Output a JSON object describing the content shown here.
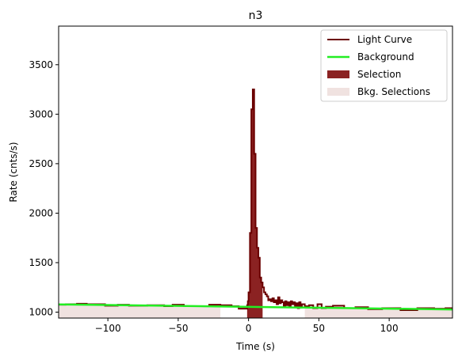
{
  "chart_data": {
    "type": "line",
    "title": "n3",
    "xlabel": "Time (s)",
    "ylabel": "Rate (cnts/s)",
    "xlim": [
      -135,
      145
    ],
    "ylim": [
      940,
      3890
    ],
    "xticks": [
      -100,
      -50,
      0,
      50,
      100
    ],
    "yticks": [
      1000,
      1500,
      2000,
      2500,
      3000,
      3500
    ],
    "xtick_labels": [
      "−100",
      "−50",
      "0",
      "50",
      "100"
    ],
    "ytick_labels": [
      "1000",
      "1500",
      "2000",
      "2500",
      "3000",
      "3500"
    ],
    "grid": false,
    "legend_position": "top-right",
    "colors": {
      "light_curve": "#6b0000",
      "background": "#22ee22",
      "selection": "#8b2222",
      "bkg_selection": "#f0e2e0"
    },
    "series": [
      {
        "name": "Light Curve",
        "kind": "step",
        "x": [
          -135,
          -130,
          -122,
          -115,
          -102,
          -93,
          -85,
          -72,
          -60,
          -54,
          -46,
          -37,
          -28,
          -20,
          -12,
          -7,
          -1,
          -0.5,
          0,
          1,
          2,
          3,
          4,
          5,
          6,
          7,
          8,
          9,
          10,
          11,
          12,
          13,
          14,
          15,
          16,
          17,
          18,
          19,
          20,
          21,
          22,
          23,
          24,
          25,
          26,
          27,
          28,
          29,
          30,
          31,
          32,
          33,
          34,
          35,
          36,
          37,
          38,
          40,
          43,
          46,
          49,
          52,
          55,
          60,
          68,
          76,
          85,
          95,
          108,
          120,
          132,
          140,
          145
        ],
        "y": [
          1075,
          1080,
          1085,
          1080,
          1065,
          1075,
          1065,
          1070,
          1060,
          1075,
          1060,
          1060,
          1075,
          1070,
          1060,
          1035,
          1070,
          1110,
          1200,
          1800,
          3050,
          3250,
          2600,
          1850,
          1650,
          1550,
          1350,
          1300,
          1250,
          1200,
          1180,
          1160,
          1120,
          1130,
          1110,
          1140,
          1100,
          1120,
          1080,
          1150,
          1090,
          1120,
          1100,
          1060,
          1110,
          1070,
          1100,
          1060,
          1110,
          1080,
          1100,
          1050,
          1090,
          1040,
          1100,
          1060,
          1080,
          1060,
          1070,
          1040,
          1080,
          1040,
          1055,
          1065,
          1040,
          1050,
          1030,
          1040,
          1020,
          1040,
          1035,
          1040,
          1040
        ]
      },
      {
        "name": "Background",
        "kind": "line",
        "x": [
          -135,
          145
        ],
        "y": [
          1078,
          1027
        ]
      }
    ],
    "selection": {
      "name": "Selection",
      "x_range": [
        -1,
        10
      ]
    },
    "background_selections": {
      "name": "Bkg. Selections",
      "ranges": [
        [
          -135,
          -20
        ],
        [
          40,
          145
        ]
      ]
    },
    "legend": [
      "Light Curve",
      "Background",
      "Selection",
      "Bkg. Selections"
    ]
  }
}
